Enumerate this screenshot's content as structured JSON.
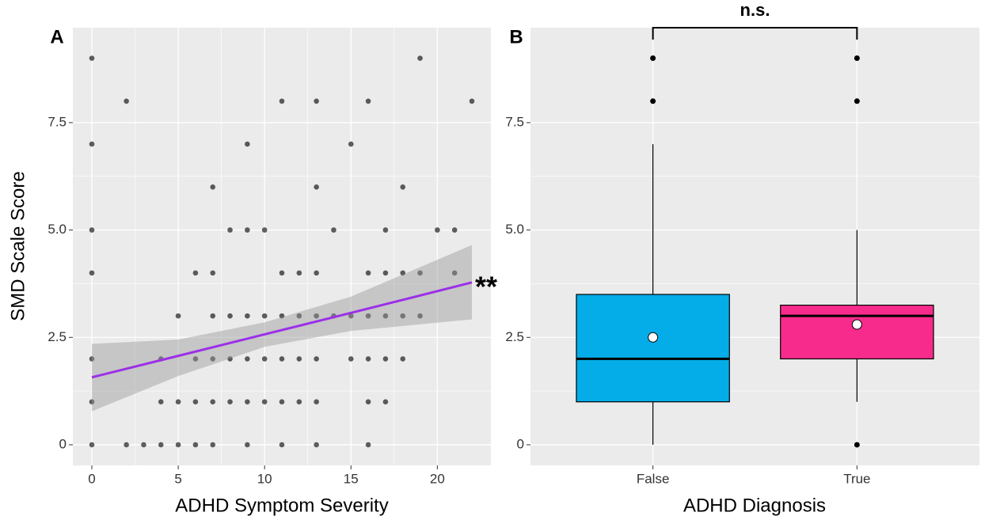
{
  "chart_data": [
    {
      "type": "scatter",
      "panel_label": "A",
      "xlabel": "ADHD Symptom Severity",
      "ylabel": "SMD Scale Score",
      "x": [
        0,
        19,
        2,
        11,
        13,
        16,
        22,
        0,
        9,
        15,
        7,
        13,
        18,
        0,
        8,
        9,
        10,
        14,
        17,
        20,
        21,
        0,
        6,
        7,
        11,
        12,
        13,
        16,
        17,
        18,
        19,
        21,
        5,
        7,
        8,
        9,
        10,
        11,
        12,
        13,
        14,
        15,
        16,
        17,
        18,
        19,
        0,
        4,
        6,
        7,
        8,
        9,
        10,
        11,
        12,
        13,
        15,
        16,
        17,
        18,
        0,
        4,
        5,
        6,
        7,
        8,
        9,
        10,
        11,
        12,
        13,
        16,
        17,
        0,
        2,
        3,
        4,
        5,
        6,
        7,
        9,
        11,
        13,
        16
      ],
      "values": [
        9,
        9,
        8,
        8,
        8,
        8,
        8,
        7,
        7,
        7,
        6,
        6,
        6,
        5,
        5,
        5,
        5,
        5,
        5,
        5,
        5,
        4,
        4,
        4,
        4,
        4,
        4,
        4,
        4,
        4,
        4,
        4,
        3,
        3,
        3,
        3,
        3,
        3,
        3,
        3,
        3,
        3,
        3,
        3,
        3,
        3,
        2,
        2,
        2,
        2,
        2,
        2,
        2,
        2,
        2,
        2,
        2,
        2,
        2,
        2,
        1,
        1,
        1,
        1,
        1,
        1,
        1,
        1,
        1,
        1,
        1,
        1,
        1,
        0,
        0,
        0,
        0,
        0,
        0,
        0,
        0,
        0,
        0,
        0
      ],
      "color": "#000000",
      "fit": {
        "x": [
          0,
          5,
          10,
          15,
          22
        ],
        "values": [
          1.57,
          2.07,
          2.57,
          3.07,
          3.78
        ],
        "lower": [
          0.78,
          1.6,
          2.28,
          2.65,
          2.92
        ],
        "upper": [
          2.35,
          2.45,
          2.85,
          3.45,
          4.65
        ],
        "color": "#9b30e8",
        "label": "**"
      },
      "xlim": [
        -1.1,
        23.1
      ],
      "xticks": [
        0,
        5,
        10,
        15,
        20
      ],
      "ylim": [
        -0.48,
        9.71
      ],
      "yticks": [
        0,
        2.5,
        {
          "value": 5,
          "label": "5.0"
        },
        7.5
      ],
      "grid": true
    },
    {
      "type": "box",
      "panel_label": "B",
      "xlabel": "ADHD Diagnosis",
      "categories": [
        "False",
        "True"
      ],
      "boxes": [
        {
          "low": 0,
          "q1": 1,
          "median": 2,
          "q3": 3.5,
          "high": 7,
          "mean": 2.5,
          "outliers": [
            8,
            9
          ],
          "color": "#04ade8"
        },
        {
          "low": 1,
          "q1": 2,
          "median": 3,
          "q3": 3.25,
          "high": 5,
          "mean": 2.8,
          "outliers": [
            0,
            8,
            9
          ],
          "color": "#f72b8c"
        }
      ],
      "annotation": "n.s.",
      "ylim": [
        -0.48,
        9.71
      ],
      "yticks": [
        0,
        2.5,
        {
          "value": 5,
          "label": "5.0"
        },
        7.5
      ],
      "grid": true
    }
  ]
}
